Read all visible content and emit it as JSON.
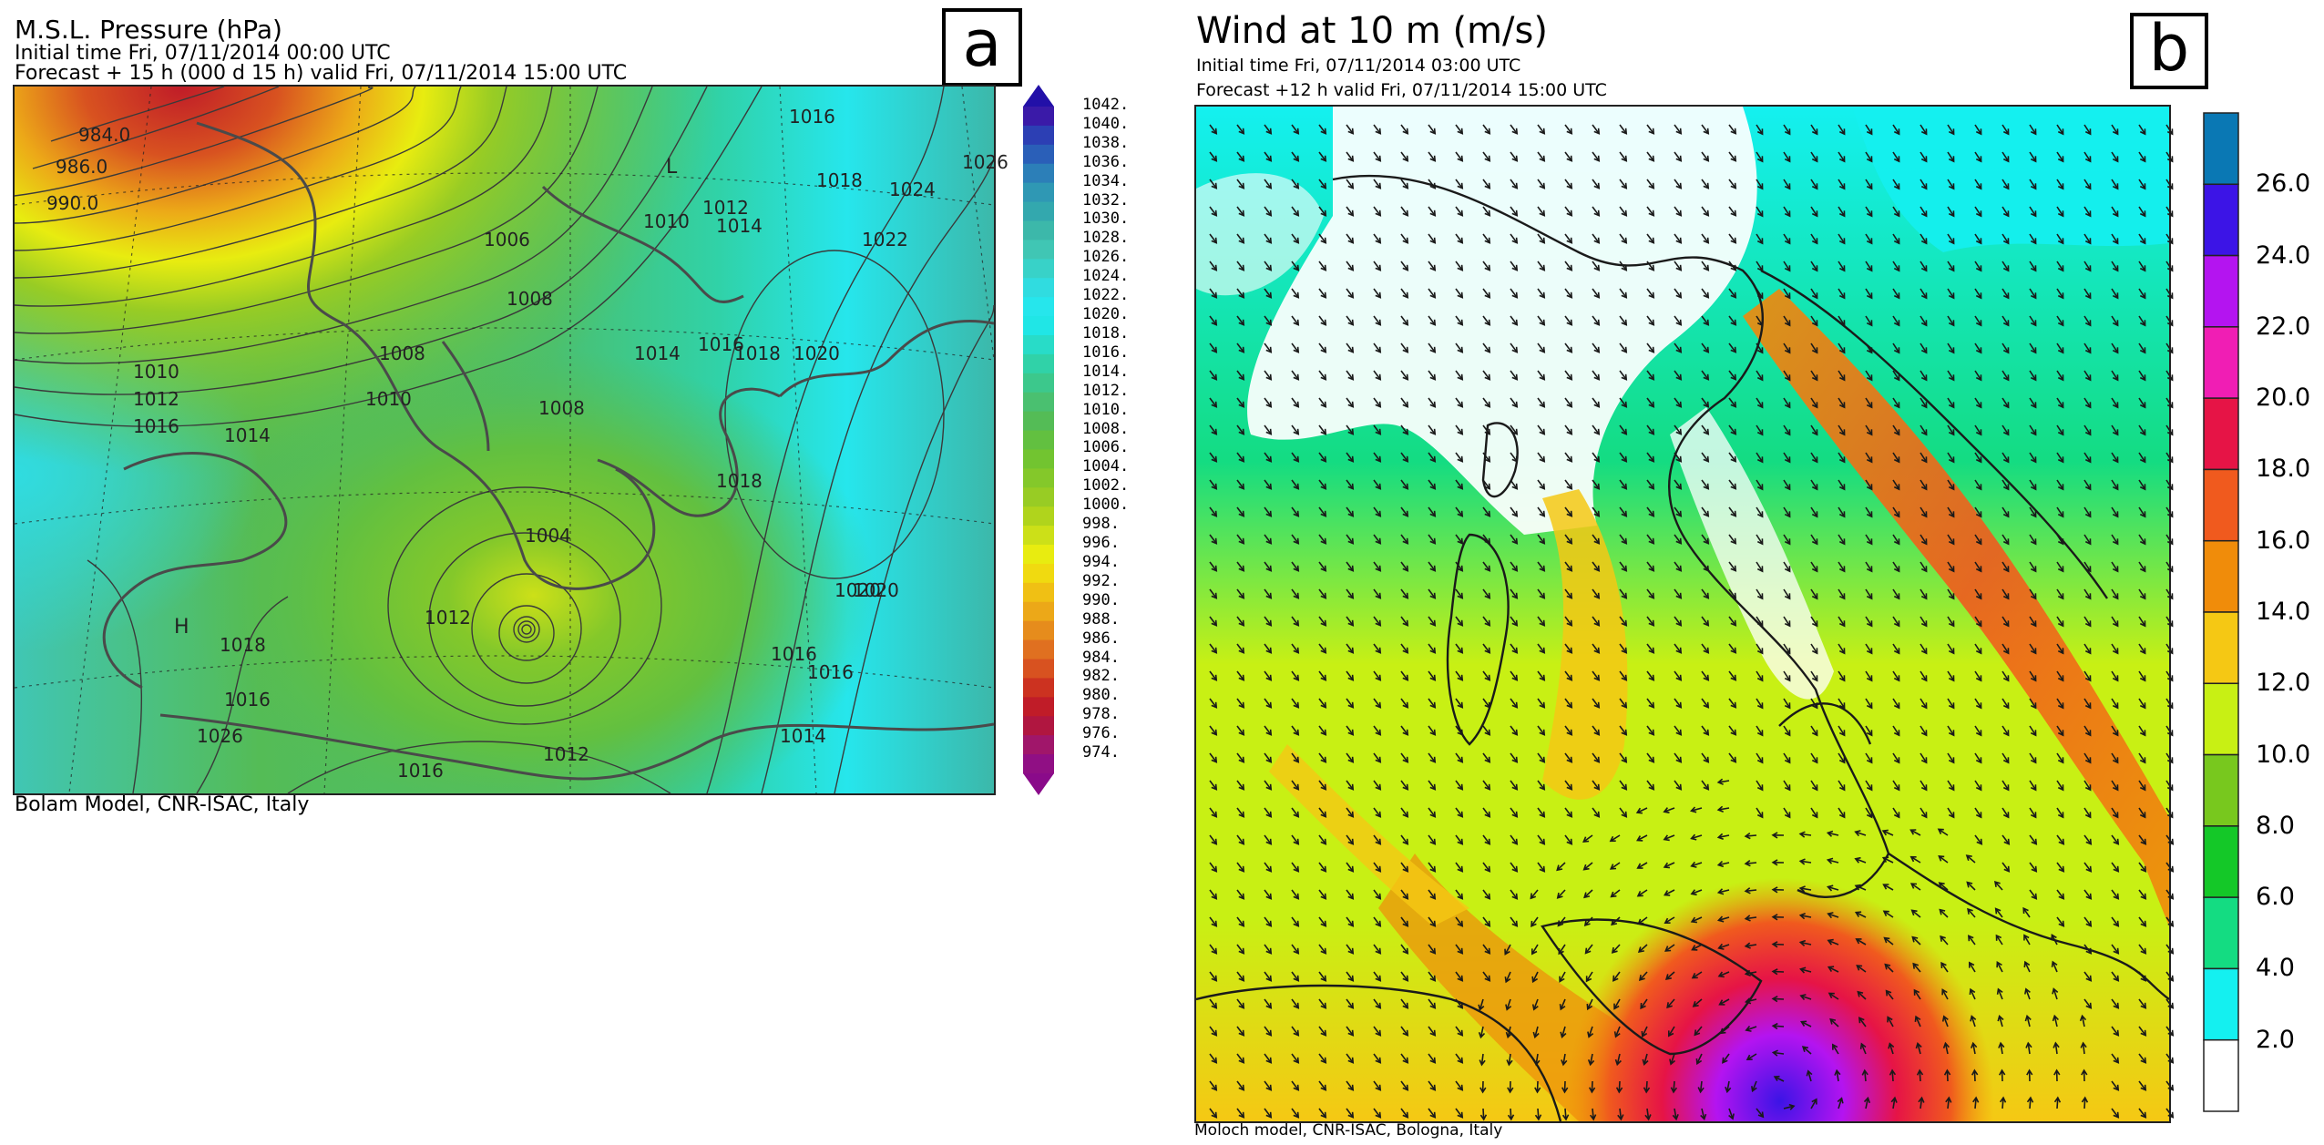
{
  "panel_a": {
    "letter": "a",
    "title": "M.S.L. Pressure (hPa)",
    "initial_time": "Initial time  Fri, 07/11/2014  00:00 UTC",
    "forecast": "Forecast  +  15 h  (000 d 15 h)  valid Fri, 07/11/2014 15:00 UTC",
    "credit": "Bolam Model, CNR-ISAC, Italy",
    "colorbar": {
      "labels": [
        "1042.",
        "1040.",
        "1038.",
        "1036.",
        "1034.",
        "1032.",
        "1030.",
        "1028.",
        "1026.",
        "1024.",
        "1022.",
        "1020.",
        "1018.",
        "1016.",
        "1014.",
        "1012.",
        "1010.",
        "1008.",
        "1006.",
        "1004.",
        "1002.",
        "1000.",
        "998.",
        "996.",
        "994.",
        "992.",
        "990.",
        "988.",
        "986.",
        "984.",
        "982.",
        "980.",
        "978.",
        "976.",
        "974."
      ],
      "colors": [
        "#3a1aa8",
        "#2c3fb4",
        "#2a5fb8",
        "#2c7fb8",
        "#2f98b4",
        "#33a8ae",
        "#3cb8aa",
        "#40c6b4",
        "#38d2c8",
        "#30dce0",
        "#26e6ec",
        "#20e6e6",
        "#28dcc8",
        "#30d2a8",
        "#3cc88c",
        "#4ac070",
        "#54bc56",
        "#62c040",
        "#72c430",
        "#84c82a",
        "#98cc24",
        "#b0d41c",
        "#cce018",
        "#e8ec10",
        "#f0da10",
        "#f0c014",
        "#eca818",
        "#e68c1c",
        "#e07020",
        "#d85220",
        "#cc3220",
        "#c01c28",
        "#b01640",
        "#a0166a",
        "#900f84"
      ],
      "top_arrow_color": "#2210a8",
      "bottom_arrow_color": "#8a0a8a"
    },
    "map_labels": [
      "1010",
      "1012",
      "1014",
      "1016",
      "1018",
      "1020",
      "1022",
      "1024",
      "1026",
      "1008",
      "1006",
      "1004",
      "1008",
      "1010",
      "1012",
      "1014",
      "1016",
      "1018",
      "1020",
      "1012",
      "1016",
      "1016",
      "1026",
      "1016",
      "1012",
      "1018",
      "1014",
      "1016",
      "1018",
      "1020",
      "1016",
      "1014",
      "1008",
      "1010",
      "L",
      "H",
      "990.0",
      "986.0",
      "984.0"
    ]
  },
  "panel_b": {
    "letter": "b",
    "title": "Wind at 10 m (m/s)",
    "initial_time": "Initial time  Fri, 07/11/2014 03:00 UTC",
    "forecast": "Forecast +12 h valid  Fri, 07/11/2014 15:00 UTC",
    "credit": "Moloch model, CNR-ISAC, Bologna, Italy",
    "colorbar": {
      "labels": [
        "26.0",
        "24.0",
        "22.0",
        "20.0",
        "18.0",
        "16.0",
        "14.0",
        "12.0",
        "10.0",
        "8.0",
        "6.0",
        "4.0",
        "2.0"
      ],
      "colors": [
        "#0a78b4",
        "#3c14e6",
        "#b414f0",
        "#f01eb4",
        "#e61446",
        "#f05a1e",
        "#f08c0a",
        "#f5c814",
        "#c8f014",
        "#78c81e",
        "#14c828",
        "#14dc82",
        "#14f0f0",
        "#ffffff"
      ]
    }
  }
}
